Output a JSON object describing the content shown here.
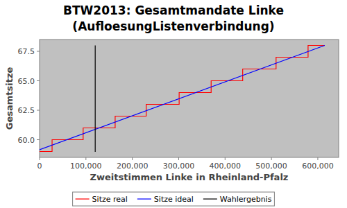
{
  "chart_data": {
    "type": "line",
    "title": "BTW2013: Gesamtmandate Linke\n(AufloesungListenverbindung)",
    "x_label": "Zweitstimmen Linke in Rheinland-Pfalz",
    "y_label": "Gesamtsitze",
    "xlim": [
      0,
      645000
    ],
    "ylim": [
      58.5,
      68.5
    ],
    "xticks": [
      0,
      {
        "value": 100000,
        "label": "100,000"
      },
      {
        "value": 200000,
        "label": "200,000"
      },
      {
        "value": 300000,
        "label": "300,000"
      },
      {
        "value": 400000,
        "label": "400,000"
      },
      {
        "value": 500000,
        "label": "500,000"
      },
      {
        "value": 600000,
        "label": "600,000"
      }
    ],
    "yticks": [
      {
        "value": 60,
        "label": "60.0"
      },
      62.5,
      {
        "value": 65,
        "label": "65.0"
      },
      67.5
    ],
    "grid": false,
    "legend": "bottom",
    "series": [
      {
        "name": "Sitze real",
        "color": "#ff0000",
        "line_style": "steps",
        "x": [
          0,
          27000,
          94000,
          163000,
          230000,
          301000,
          370000,
          438000,
          510000,
          579000,
          615000
        ],
        "values": [
          59,
          60,
          61,
          62,
          63,
          64,
          65,
          66,
          67,
          68,
          68
        ]
      },
      {
        "name": "Sitze ideal",
        "color": "#0000ff",
        "line_style": "solid",
        "x": [
          0,
          615000
        ],
        "values": [
          59.15,
          68.0
        ]
      },
      {
        "name": "Wahlergebnis",
        "color": "#000000",
        "line_style": "solid",
        "x": [
          120000,
          120000
        ],
        "values": [
          58.97,
          68.0
        ]
      }
    ]
  }
}
